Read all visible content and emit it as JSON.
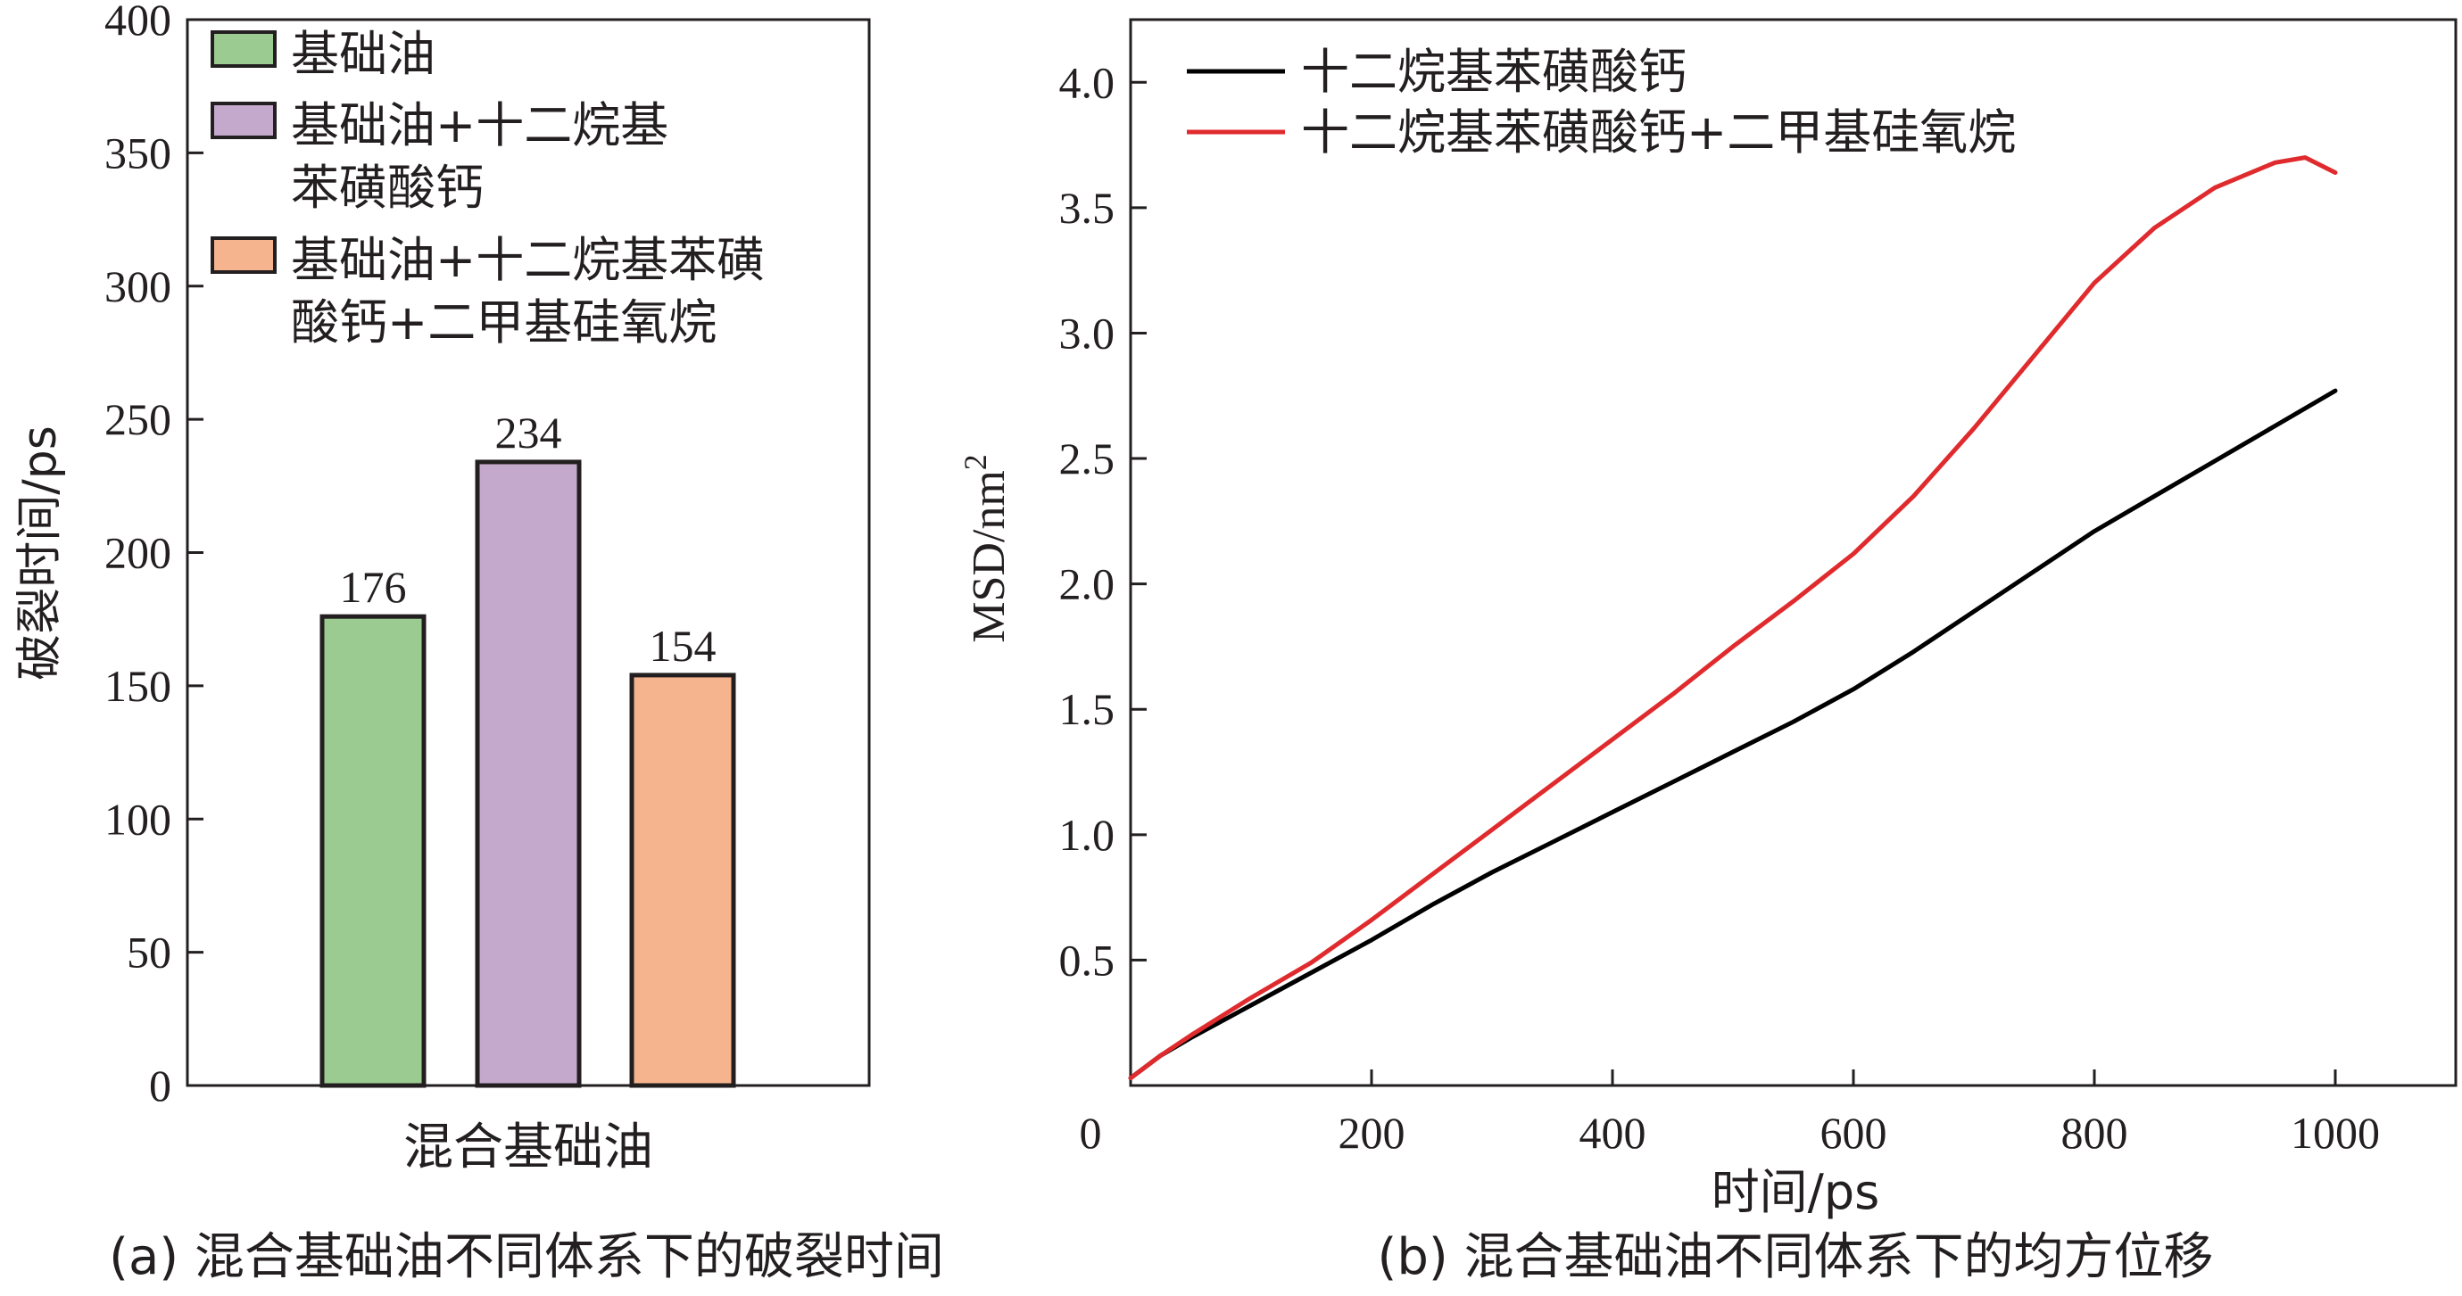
{
  "figure": {
    "panel_a_caption": "(a) 混合基础油不同体系下的破裂时间",
    "panel_b_caption": "(b) 混合基础油不同体系下的均方位移"
  },
  "chart_data": [
    {
      "type": "bar",
      "panel": "a",
      "title": "",
      "xlabel": "混合基础油",
      "ylabel": "破裂时间/ps",
      "ylim": [
        0,
        400
      ],
      "yticks": [
        "0",
        "50",
        "100",
        "150",
        "200",
        "250",
        "300",
        "350",
        "400"
      ],
      "categories": [
        "基础油",
        "基础油+十二烷基苯磺酸钙",
        "基础油+十二烷基苯磺酸钙+二甲基硅氧烷"
      ],
      "values": [
        176,
        234,
        154
      ],
      "value_labels": [
        "176",
        "234",
        "154"
      ],
      "colors": [
        "#9ccb91",
        "#c4a9cc",
        "#f6b48e"
      ],
      "legend": {
        "position": "top-left",
        "entries": [
          {
            "lines": [
              "基础油"
            ],
            "color": "#9ccb91"
          },
          {
            "lines": [
              "基础油+十二烷基",
              "苯磺酸钙"
            ],
            "color": "#c4a9cc"
          },
          {
            "lines": [
              "基础油+十二烷基苯磺",
              "酸钙+二甲基硅氧烷"
            ],
            "color": "#f6b48e"
          }
        ]
      },
      "grid": false
    },
    {
      "type": "line",
      "panel": "b",
      "title": "",
      "xlabel": "时间/ps",
      "ylabel": "MSD/nm²",
      "xlim": [
        0,
        1100
      ],
      "ylim": [
        0,
        4.25
      ],
      "xticks": [
        "0",
        "200",
        "400",
        "600",
        "800",
        "1000"
      ],
      "yticks": [
        "0.5",
        "1.0",
        "1.5",
        "2.0",
        "2.5",
        "3.0",
        "3.5",
        "4.0"
      ],
      "legend": {
        "position": "top-left"
      },
      "grid": false,
      "series": [
        {
          "name": "十二烷基苯磺酸钙",
          "color": "#000000",
          "x": [
            0,
            25,
            50,
            100,
            150,
            200,
            250,
            300,
            350,
            400,
            450,
            500,
            550,
            600,
            650,
            700,
            750,
            800,
            850,
            900,
            950,
            1000
          ],
          "y": [
            0.03,
            0.12,
            0.19,
            0.32,
            0.45,
            0.58,
            0.72,
            0.85,
            0.97,
            1.09,
            1.21,
            1.33,
            1.45,
            1.58,
            1.73,
            1.89,
            2.05,
            2.21,
            2.35,
            2.49,
            2.63,
            2.77
          ]
        },
        {
          "name": "十二烷基苯磺酸钙+二甲基硅氧烷",
          "color": "#e02b2e",
          "x": [
            0,
            25,
            50,
            100,
            150,
            200,
            250,
            300,
            350,
            400,
            450,
            500,
            550,
            600,
            650,
            700,
            750,
            800,
            850,
            900,
            950,
            975,
            1000
          ],
          "y": [
            0.03,
            0.12,
            0.2,
            0.35,
            0.49,
            0.66,
            0.84,
            1.02,
            1.2,
            1.38,
            1.56,
            1.75,
            1.93,
            2.12,
            2.35,
            2.62,
            2.91,
            3.2,
            3.42,
            3.58,
            3.68,
            3.7,
            3.64
          ]
        }
      ]
    }
  ]
}
